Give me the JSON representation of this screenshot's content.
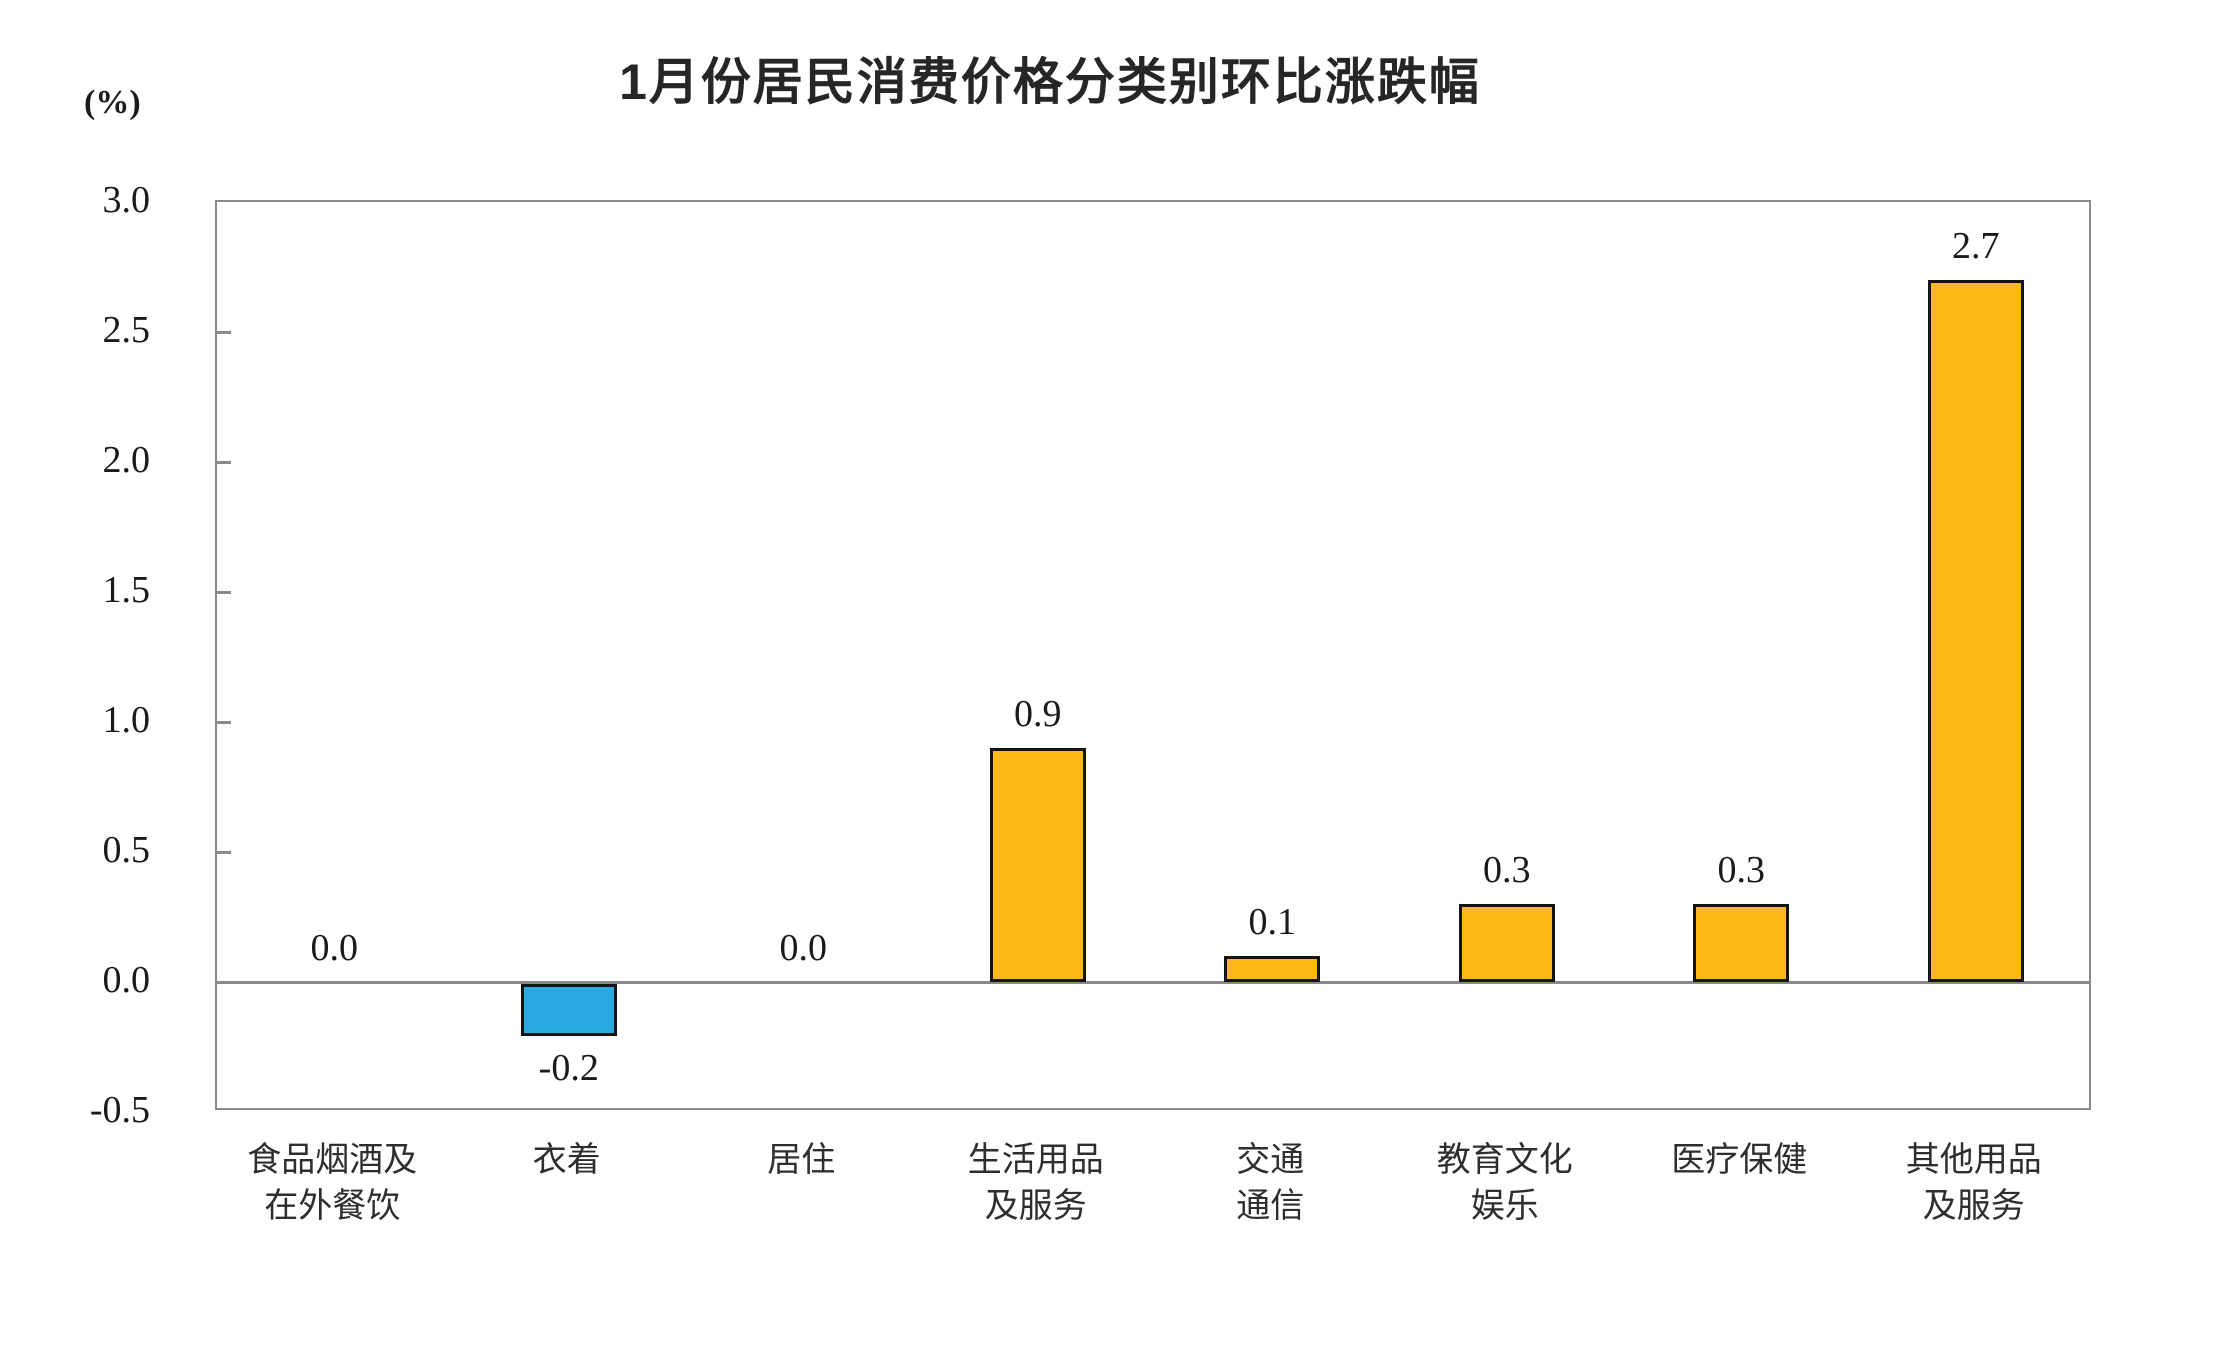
{
  "chart_data": {
    "type": "bar",
    "title": "1月份居民消费价格分类别环比涨跌幅",
    "ylabel": "(%)",
    "categories": [
      "食品烟酒及\n在外餐饮",
      "衣着",
      "居住",
      "生活用品\n及服务",
      "交通\n通信",
      "教育文化\n娱乐",
      "医疗保健",
      "其他用品\n及服务"
    ],
    "values": [
      0.0,
      -0.2,
      0.0,
      0.9,
      0.1,
      0.3,
      0.3,
      2.7
    ],
    "value_labels": [
      "0.0",
      "-0.2",
      "0.0",
      "0.9",
      "0.1",
      "0.3",
      "0.3",
      "2.7"
    ],
    "ylim": [
      -0.5,
      3.0
    ],
    "y_tick_values": [
      3.0,
      2.5,
      2.0,
      1.5,
      1.0,
      0.5,
      0.0,
      -0.5
    ],
    "y_tick_labels": [
      "3.0",
      "2.5",
      "2.0",
      "1.5",
      "1.0",
      "0.5",
      "0.0",
      "-0.5"
    ],
    "grid": "zero-line-only",
    "legend": "none",
    "colors": {
      "positive_bar": "#FBB817",
      "negative_bar": "#29ABE2",
      "bar_border": "#141414",
      "axis_line": "#8A8A8A",
      "text": "#1A1A1A"
    }
  }
}
